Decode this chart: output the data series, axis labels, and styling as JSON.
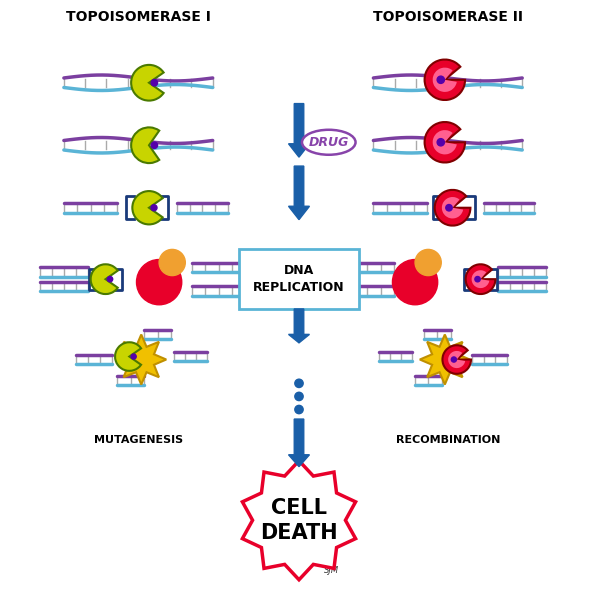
{
  "title_left": "TOPOISOMERASE I",
  "title_right": "TOPOISOMERASE II",
  "drug_label": "DRUG",
  "dna_replication_label": "DNA\nREPLICATION",
  "mutagenesis_label": "MUTAGENESIS",
  "recombination_label": "RECOMBINATION",
  "cell_death_label": "CELL\nDEATH",
  "bg_color": "#ffffff",
  "arrow_color": "#1a5fa8",
  "dna_color1": "#7b3fa0",
  "dna_color2": "#5ab4d6",
  "topo1_color": "#c8d400",
  "topo1_outline": "#4a7a00",
  "topo2_color": "#e8002a",
  "topo2_inner": "#ff6090",
  "drug_dot_color": "#7b3fa0",
  "bracket_color": "#1a3a7a",
  "box_color": "#5ab4d6",
  "cell_death_border": "#e8002a",
  "explosion_color": "#f0c000",
  "replication_ball_red": "#e8002a",
  "replication_ball_orange": "#f0a030",
  "figsize": [
    5.98,
    6.0
  ],
  "dpi": 100
}
